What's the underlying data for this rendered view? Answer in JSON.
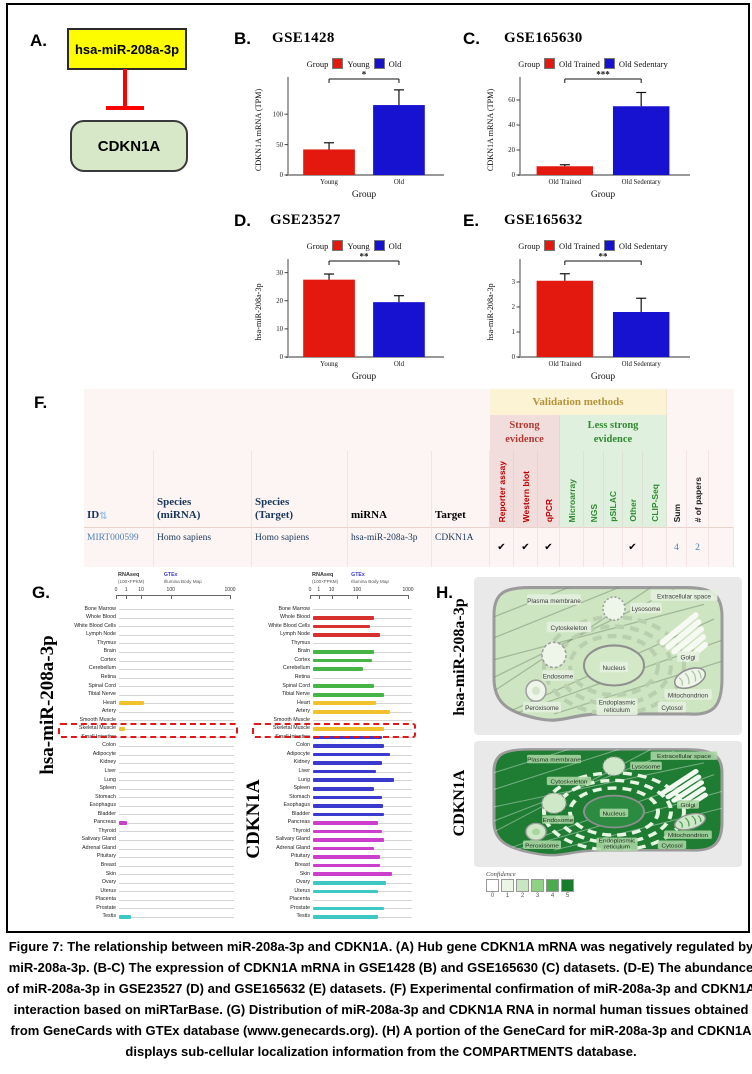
{
  "colors": {
    "red": "#e3180f",
    "blue": "#1612cf",
    "mirna_box": "#fdfd00",
    "target_box": "#d7e8c9",
    "inhibit": "#ff0000",
    "tissue_groups": {
      "blood": "#d63030",
      "nerve": "#46b446",
      "muscle": "#f2c12e",
      "organ": "#3a3acc",
      "gland": "#cc3ecc",
      "repro": "#3ec8c4"
    },
    "confidence": [
      "#ffffff",
      "#ebf6e7",
      "#c8e7c0",
      "#90d186",
      "#4cab4f",
      "#187c2d"
    ]
  },
  "panels": {
    "a": "A.",
    "b": "B.",
    "c": "C.",
    "d": "D.",
    "e": "E.",
    "f": "F.",
    "g": "G.",
    "h": "H."
  },
  "panelA": {
    "mirna": "hsa-miR-208a-3p",
    "target": "CDKN1A"
  },
  "chart_data": [
    {
      "type": "bar",
      "panel": "B",
      "title": "GSE1428",
      "legend_title": "Group",
      "groups": [
        "Young",
        "Old"
      ],
      "ylabel": "CDKN1A mRNA (TPM)",
      "xlabel": "Group",
      "values": [
        42,
        115
      ],
      "errors": [
        11,
        25
      ],
      "yticks": [
        0,
        50,
        100
      ],
      "ylim": [
        0,
        148
      ],
      "sig": "*"
    },
    {
      "type": "bar",
      "panel": "C",
      "title": "GSE165630",
      "legend_title": "Group",
      "groups": [
        "Old Trained",
        "Old Sedentary"
      ],
      "ylabel": "CDKN1A mRNA (TPM)",
      "xlabel": "Group",
      "values": [
        7,
        55
      ],
      "errors": [
        1.2,
        11
      ],
      "yticks": [
        0,
        20,
        40,
        60
      ],
      "ylim": [
        0,
        72
      ],
      "sig": "***"
    },
    {
      "type": "bar",
      "panel": "D",
      "title": "GSE23527",
      "legend_title": "Group",
      "groups": [
        "Young",
        "Old"
      ],
      "ylabel": "hsa-miR-208a-3p",
      "xlabel": "Group",
      "values": [
        27.5,
        19.5
      ],
      "errors": [
        2,
        2.3
      ],
      "yticks": [
        0,
        10,
        20,
        30
      ],
      "ylim": [
        0,
        32
      ],
      "sig": "**"
    },
    {
      "type": "bar",
      "panel": "E",
      "title": "GSE165632",
      "legend_title": "Group",
      "groups": [
        "Old Trained",
        "Old Sedentary"
      ],
      "ylabel": "hsa-miR-208a-3p",
      "xlabel": "Group",
      "values": [
        3.05,
        1.8
      ],
      "errors": [
        0.28,
        0.55
      ],
      "yticks": [
        0,
        1,
        2,
        3
      ],
      "ylim": [
        0,
        3.6
      ],
      "sig": "**"
    },
    {
      "type": "bar-horizontal",
      "panel": "G-left",
      "title": "hsa-miR-208a-3p",
      "x_scale": "log",
      "x_ticks": [
        "0",
        "1",
        "10",
        "100",
        "1000"
      ]
    },
    {
      "type": "bar-horizontal",
      "panel": "G-right",
      "title": "CDKN1A",
      "x_scale": "log",
      "x_ticks": [
        "0",
        "1",
        "10",
        "100",
        "1000"
      ]
    }
  ],
  "table": {
    "validation_header": "Validation methods",
    "strong_header": "Strong\nevidence",
    "less_strong_header": "Less strong\nevidence",
    "id_col": "ID",
    "sort_icon": "⇅",
    "species_mirna_col": "Species\n(miRNA)",
    "species_target_col": "Species\n(Target)",
    "mirna_col": "miRNA",
    "target_col": "Target",
    "methods": [
      {
        "name": "Reporter assay",
        "class": "strong"
      },
      {
        "name": "Western blot",
        "class": "strong"
      },
      {
        "name": "qPCR",
        "class": "strong"
      },
      {
        "name": "Microarray",
        "class": "less"
      },
      {
        "name": "NGS",
        "class": "less"
      },
      {
        "name": "pSILAC",
        "class": "less"
      },
      {
        "name": "Other",
        "class": "less"
      },
      {
        "name": "CLIP-Seq",
        "class": "less"
      }
    ],
    "sum_col": "Sum",
    "papers_col": "# of papers",
    "check_glyph": "✔",
    "row": {
      "id": "MIRT000599",
      "species_mirna": "Homo sapiens",
      "species_target": "Homo sapiens",
      "mirna": "hsa-miR-208a-3p",
      "target": "CDKN1A",
      "checks": [
        "Reporter assay",
        "Western blot",
        "qPCR",
        "Other"
      ],
      "sum": "4",
      "papers": "2"
    }
  },
  "tissue": {
    "header_left": "RNAseq",
    "header_left_sub": "(100×FPKM)",
    "header_right": "GTEx",
    "header_right_sub": "Illumina Body Map",
    "axis_ticks": [
      "0",
      "1",
      "10",
      "100",
      "1000"
    ],
    "highlight": "Skeletal Muscle",
    "charts": [
      {
        "name": "hsa-miR-208a-3p"
      },
      {
        "name": "CDKN1A"
      }
    ],
    "tissues": [
      {
        "name": "Bone Marrow",
        "group": "blood",
        "mir": 0,
        "cdkn": 0
      },
      {
        "name": "Whole Blood",
        "group": "blood",
        "mir": 0,
        "cdkn": 0.62
      },
      {
        "name": "White Blood Cells",
        "group": "blood",
        "mir": 0,
        "cdkn": 0.58
      },
      {
        "name": "Lymph Node",
        "group": "blood",
        "mir": 0,
        "cdkn": 0.68
      },
      {
        "name": "Thymus",
        "group": "blood",
        "mir": 0,
        "cdkn": 0
      },
      {
        "name": "Brain",
        "group": "nerve",
        "mir": 0,
        "cdkn": 0.62
      },
      {
        "name": "Cortex",
        "group": "nerve",
        "mir": 0,
        "cdkn": 0.6
      },
      {
        "name": "Cerebellum",
        "group": "nerve",
        "mir": 0,
        "cdkn": 0.5
      },
      {
        "name": "Retina",
        "group": "nerve",
        "mir": 0,
        "cdkn": 0
      },
      {
        "name": "Spinal Cord",
        "group": "nerve",
        "mir": 0,
        "cdkn": 0.62
      },
      {
        "name": "Tibial Nerve",
        "group": "nerve",
        "mir": 0,
        "cdkn": 0.72
      },
      {
        "name": "Heart",
        "group": "muscle",
        "mir": 0.22,
        "cdkn": 0.64
      },
      {
        "name": "Artery",
        "group": "muscle",
        "mir": 0,
        "cdkn": 0.78
      },
      {
        "name": "Smooth Muscle",
        "group": "muscle",
        "mir": 0,
        "cdkn": 0
      },
      {
        "name": "Skeletal Muscle",
        "group": "muscle",
        "mir": 0.05,
        "cdkn": 0.72
      },
      {
        "name": "Small Intestine",
        "group": "organ",
        "mir": 0,
        "cdkn": 0.7
      },
      {
        "name": "Colon",
        "group": "organ",
        "mir": 0,
        "cdkn": 0.72
      },
      {
        "name": "Adipocyte",
        "group": "organ",
        "mir": 0,
        "cdkn": 0.78
      },
      {
        "name": "Kidney",
        "group": "organ",
        "mir": 0,
        "cdkn": 0.7
      },
      {
        "name": "Liver",
        "group": "organ",
        "mir": 0,
        "cdkn": 0.64
      },
      {
        "name": "Lung",
        "group": "organ",
        "mir": 0,
        "cdkn": 0.82
      },
      {
        "name": "Spleen",
        "group": "organ",
        "mir": 0,
        "cdkn": 0.62
      },
      {
        "name": "Stomach",
        "group": "organ",
        "mir": 0,
        "cdkn": 0.7
      },
      {
        "name": "Esophagus",
        "group": "organ",
        "mir": 0,
        "cdkn": 0.71
      },
      {
        "name": "Bladder",
        "group": "organ",
        "mir": 0,
        "cdkn": 0.72
      },
      {
        "name": "Pancreas",
        "group": "gland",
        "mir": 0.07,
        "cdkn": 0.66
      },
      {
        "name": "Thyroid",
        "group": "gland",
        "mir": 0,
        "cdkn": 0.7
      },
      {
        "name": "Salivary Gland",
        "group": "gland",
        "mir": 0,
        "cdkn": 0.72
      },
      {
        "name": "Adrenal Gland",
        "group": "gland",
        "mir": 0,
        "cdkn": 0.62
      },
      {
        "name": "Pituitary",
        "group": "gland",
        "mir": 0,
        "cdkn": 0.68
      },
      {
        "name": "Breast",
        "group": "gland",
        "mir": 0,
        "cdkn": 0.68
      },
      {
        "name": "Skin",
        "group": "gland",
        "mir": 0,
        "cdkn": 0.8
      },
      {
        "name": "Ovary",
        "group": "repro",
        "mir": 0,
        "cdkn": 0.74
      },
      {
        "name": "Uterus",
        "group": "repro",
        "mir": 0,
        "cdkn": 0.66
      },
      {
        "name": "Placenta",
        "group": "repro",
        "mir": 0,
        "cdkn": 0
      },
      {
        "name": "Prostate",
        "group": "repro",
        "mir": 0,
        "cdkn": 0.72
      },
      {
        "name": "Testis",
        "group": "repro",
        "mir": 0.1,
        "cdkn": 0.66
      }
    ]
  },
  "cells": {
    "top_name": "hsa-miR-208a-3p",
    "bottom_name": "CDKN1A",
    "labels": {
      "plasma_membrane": "Plasma membrane",
      "extracellular": "Extracellular space",
      "lysosome": "Lysosome",
      "cytoskeleton": "Cytoskeleton",
      "golgi": "Golgi",
      "endosome": "Endosome",
      "nucleus": "Nucleus",
      "mitochondrion": "Mitochondrion",
      "peroxisome": "Peroxisome",
      "er": "Endoplasmic reticulum",
      "cytosol": "Cytosol"
    },
    "confidence": {
      "label": "Confidence",
      "levels": [
        "0",
        "1",
        "2",
        "3",
        "4",
        "5"
      ]
    }
  },
  "caption": "Figure 7: The relationship between miR-208a-3p and CDKN1A. (A) Hub gene CDKN1A mRNA was negatively regulated by miR-208a-3p. (B-C) The expression of CDKN1A mRNA in GSE1428 (B) and GSE165630 (C) datasets. (D-E) The abundance of miR-208a-3p in GSE23527 (D) and GSE165632 (E) datasets. (F) Experimental confirmation of miR-208a-3p and CDKN1A interaction based on miRTarBase. (G) Distribution of miR-208a-3p and CDKN1A RNA in normal human tissues obtained from GeneCards with GTEx database (www.genecards.org). (H) A portion of the GeneCard for miR-208a-3p and CDKN1A displays sub-cellular localization information from the COMPARTMENTS database."
}
